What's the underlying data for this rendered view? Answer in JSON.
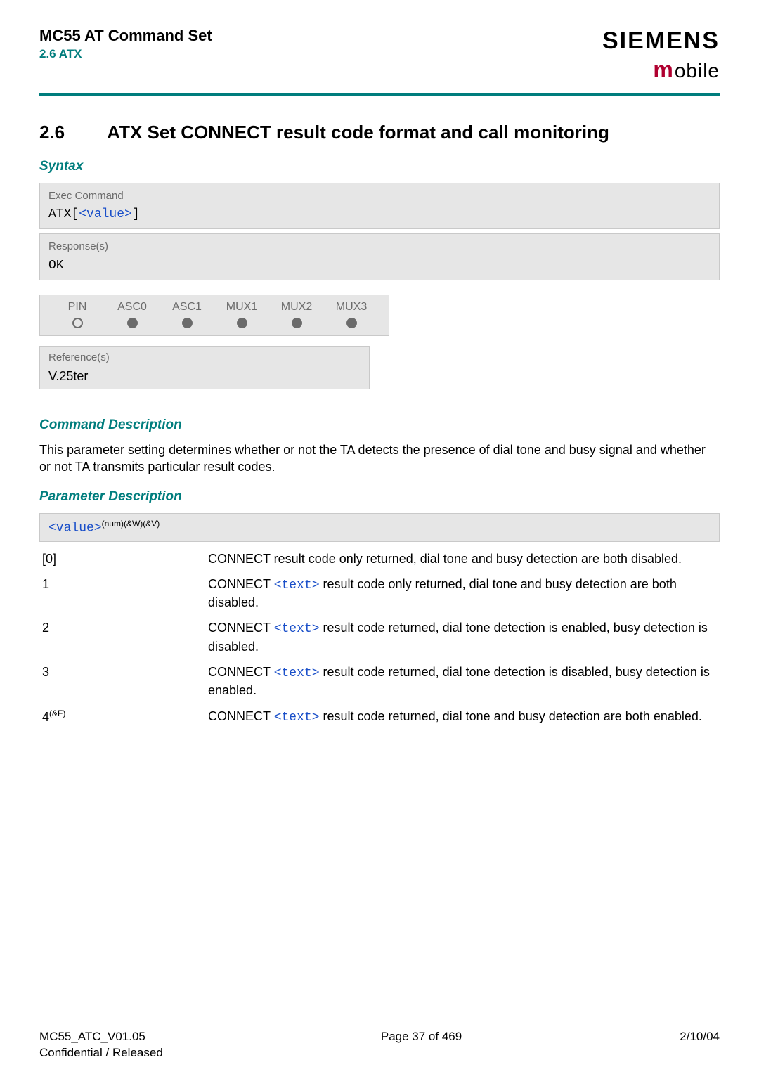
{
  "header": {
    "doc_title": "MC55 AT Command Set",
    "doc_section": "2.6 ATX",
    "brand_main": "SIEMENS",
    "brand_sub_first": "m",
    "brand_sub_rest": "obile"
  },
  "heading": {
    "num": "2.6",
    "text": "ATX   Set CONNECT result code format and call monitoring"
  },
  "syntax": {
    "label": "Syntax",
    "exec_label": "Exec Command",
    "exec_pre": "ATX[",
    "exec_value": "<value>",
    "exec_post": "]",
    "response_label": "Response(s)",
    "response_value": "OK"
  },
  "pin_table": {
    "headers": [
      "PIN",
      "ASC0",
      "ASC1",
      "MUX1",
      "MUX2",
      "MUX3"
    ],
    "filled": [
      false,
      true,
      true,
      true,
      true,
      true
    ]
  },
  "reference": {
    "label": "Reference(s)",
    "value": "V.25ter"
  },
  "cmd_desc": {
    "label": "Command Description",
    "text": "This parameter setting determines whether or not the TA detects the presence of dial tone and busy signal and whether or not TA transmits particular result codes."
  },
  "param_desc": {
    "label": "Parameter Description",
    "param_name": "<value>",
    "param_sup": "(num)(&W)(&V)",
    "rows": [
      {
        "key": "[0]",
        "key_sup": "",
        "pre": "CONNECT result code only returned, dial tone and busy detection are both disabled.",
        "link": ""
      },
      {
        "key": "1",
        "key_sup": "",
        "pre": "CONNECT ",
        "link": "<text>",
        "post": " result code only returned, dial tone and busy detection are both disabled."
      },
      {
        "key": "2",
        "key_sup": "",
        "pre": "CONNECT ",
        "link": "<text>",
        "post": " result code returned, dial tone detection is enabled, busy detection is disabled."
      },
      {
        "key": "3",
        "key_sup": "",
        "pre": "CONNECT ",
        "link": "<text>",
        "post": " result code returned, dial tone detection is disabled, busy detection is enabled."
      },
      {
        "key": "4",
        "key_sup": "(&F)",
        "pre": "CONNECT ",
        "link": "<text>",
        "post": " result code returned, dial tone and busy detection are both enabled."
      }
    ]
  },
  "footer": {
    "left1": "MC55_ATC_V01.05",
    "left2": "Confidential / Released",
    "center": "Page 37 of 469",
    "right": "2/10/04"
  }
}
